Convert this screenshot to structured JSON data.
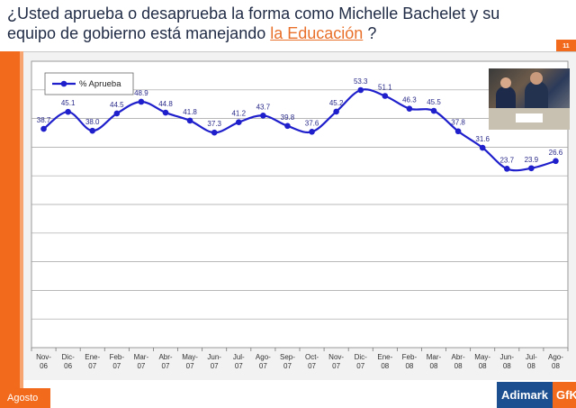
{
  "question": {
    "line1": "¿Usted aprueba o desaprueba la forma como Michelle Bachelet y su",
    "line2_prefix": "equipo de gobierno está manejando ",
    "highlight": "la Educación",
    "suffix": " ?"
  },
  "slide_number": "11",
  "footer": {
    "period": "Agosto"
  },
  "logo": {
    "part1": "Adimark",
    "part2": "GfK"
  },
  "colors": {
    "accent": "#f26b1d",
    "series": "#1f1fcc",
    "brand_blue": "#1b4f8f"
  },
  "chart_data": {
    "type": "line",
    "categories": [
      [
        "Nov-",
        "06"
      ],
      [
        "Dic-",
        "06"
      ],
      [
        "Ene-",
        "07"
      ],
      [
        "Feb-",
        "07"
      ],
      [
        "Mar-",
        "07"
      ],
      [
        "Abr-",
        "07"
      ],
      [
        "May-",
        "07"
      ],
      [
        "Jun-",
        "07"
      ],
      [
        "Jul-",
        "07"
      ],
      [
        "Ago-",
        "07"
      ],
      [
        "Sep-",
        "07"
      ],
      [
        "Oct-",
        "07"
      ],
      [
        "Nov-",
        "07"
      ],
      [
        "Dic-",
        "07"
      ],
      [
        "Ene-",
        "08"
      ],
      [
        "Feb-",
        "08"
      ],
      [
        "Mar-",
        "08"
      ],
      [
        "Abr-",
        "08"
      ],
      [
        "May-",
        "08"
      ],
      [
        "Jun-",
        "08"
      ],
      [
        "Jul-",
        "08"
      ],
      [
        "Ago-",
        "08"
      ]
    ],
    "series": [
      {
        "name": "% Aprueba",
        "values": [
          38.7,
          45.1,
          38.0,
          44.5,
          48.9,
          44.8,
          41.8,
          37.3,
          41.2,
          43.7,
          39.8,
          37.6,
          45.2,
          53.3,
          51.1,
          46.3,
          45.5,
          37.8,
          31.6,
          23.7,
          23.9,
          26.6
        ],
        "labels": [
          "38.7",
          "45.1",
          "38.0",
          "44.5",
          "48.9",
          "44.8",
          "41.8",
          "37.3",
          "41.2",
          "43.7",
          "39.8",
          "37.6",
          "45.2",
          "53.3",
          "51.1",
          "46.3",
          "45.5",
          "37.8",
          "31.6",
          "23.7",
          "23.9",
          "26.6"
        ]
      }
    ],
    "ylim": [
      0,
      60
    ],
    "grid": true,
    "legend": "top-left",
    "title": "",
    "xlabel": "",
    "ylabel": ""
  }
}
